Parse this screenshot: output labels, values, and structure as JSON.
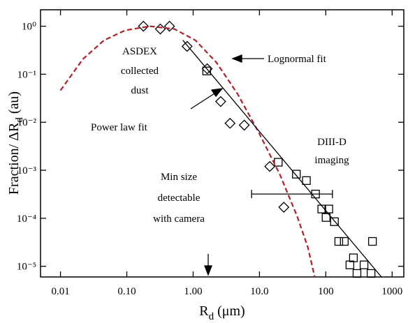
{
  "chart_data": {
    "type": "scatter",
    "xlabel": {
      "main": "R",
      "sub": "d",
      "rest": " (μm)"
    },
    "ylabel": {
      "main": "Fraction/ ΔR",
      "sub": "d",
      "rest": " (au)"
    },
    "log_x": true,
    "log_y": true,
    "xlim": [
      0.005,
      1500
    ],
    "ylim": [
      6e-06,
      2.2
    ],
    "xticks": [
      {
        "value": 0.01,
        "label": "0.01"
      },
      {
        "value": 0.1,
        "label": "0.10"
      },
      {
        "value": 1,
        "label": "1.00"
      },
      {
        "value": 10,
        "label": "10.0"
      },
      100,
      1000
    ],
    "yticks": [
      {
        "value": 1e-05,
        "label": "10⁻⁵"
      },
      {
        "value": 0.0001,
        "label": "10⁻⁴"
      },
      {
        "value": 0.001,
        "label": "10⁻³"
      },
      {
        "value": 0.01,
        "label": "10⁻²"
      },
      {
        "value": 0.1,
        "label": "10⁻¹"
      },
      {
        "value": 1,
        "label": "10⁰"
      }
    ],
    "series": [
      {
        "name": "ASDEX collected dust",
        "kind": "diamond",
        "color": "#000000",
        "x": [
          0.178,
          0.32,
          0.44,
          0.81,
          1.63,
          2.6,
          3.6,
          5.9,
          14.3,
          23.3
        ],
        "values": [
          1.0,
          0.875,
          1.0,
          0.38,
          0.13,
          0.027,
          0.0095,
          0.0087,
          0.0012,
          0.00017
        ]
      },
      {
        "name": "DIII-D imaging",
        "kind": "square",
        "color": "#000000",
        "x": [
          1.6,
          19.2,
          36,
          51,
          70,
          87,
          111,
          101,
          135,
          157,
          190,
          261,
          231,
          295,
          377,
          505,
          481
        ],
        "values": [
          0.117,
          0.00147,
          0.00083,
          0.00061,
          0.00032,
          0.000156,
          0.000156,
          0.000104,
          8.5e-05,
          3.3e-05,
          3.3e-05,
          1.5e-05,
          1.07e-05,
          7.1e-06,
          1.07e-05,
          3.3e-05,
          7.1e-06
        ]
      },
      {
        "name": "Lognormal fit",
        "kind": "line",
        "dash": true,
        "color": "#b0202a",
        "x": [
          0.01,
          0.0218,
          0.0454,
          0.0944,
          0.221,
          0.52,
          1.08,
          2.25,
          4.67,
          9.7,
          20.2,
          37,
          53.6,
          68
        ],
        "values": [
          0.046,
          0.207,
          0.51,
          0.82,
          1.0,
          0.875,
          0.51,
          0.175,
          0.039,
          0.0062,
          0.00083,
          0.00011,
          2.5e-05,
          6e-06
        ]
      },
      {
        "name": "Power law fit",
        "kind": "line",
        "dash": false,
        "color": "#000000",
        "x": [
          0.7,
          690
        ],
        "values": [
          0.51,
          6e-06
        ]
      }
    ],
    "error_bar": {
      "x": [
        7.6,
        126
      ],
      "y": 0.00032
    },
    "annotations": [
      "ASDEX",
      "collected",
      "dust",
      "Lognormal fit",
      "Power law fit",
      "DIII-D",
      "imaging",
      "Min size",
      "detectable",
      "with camera"
    ]
  }
}
